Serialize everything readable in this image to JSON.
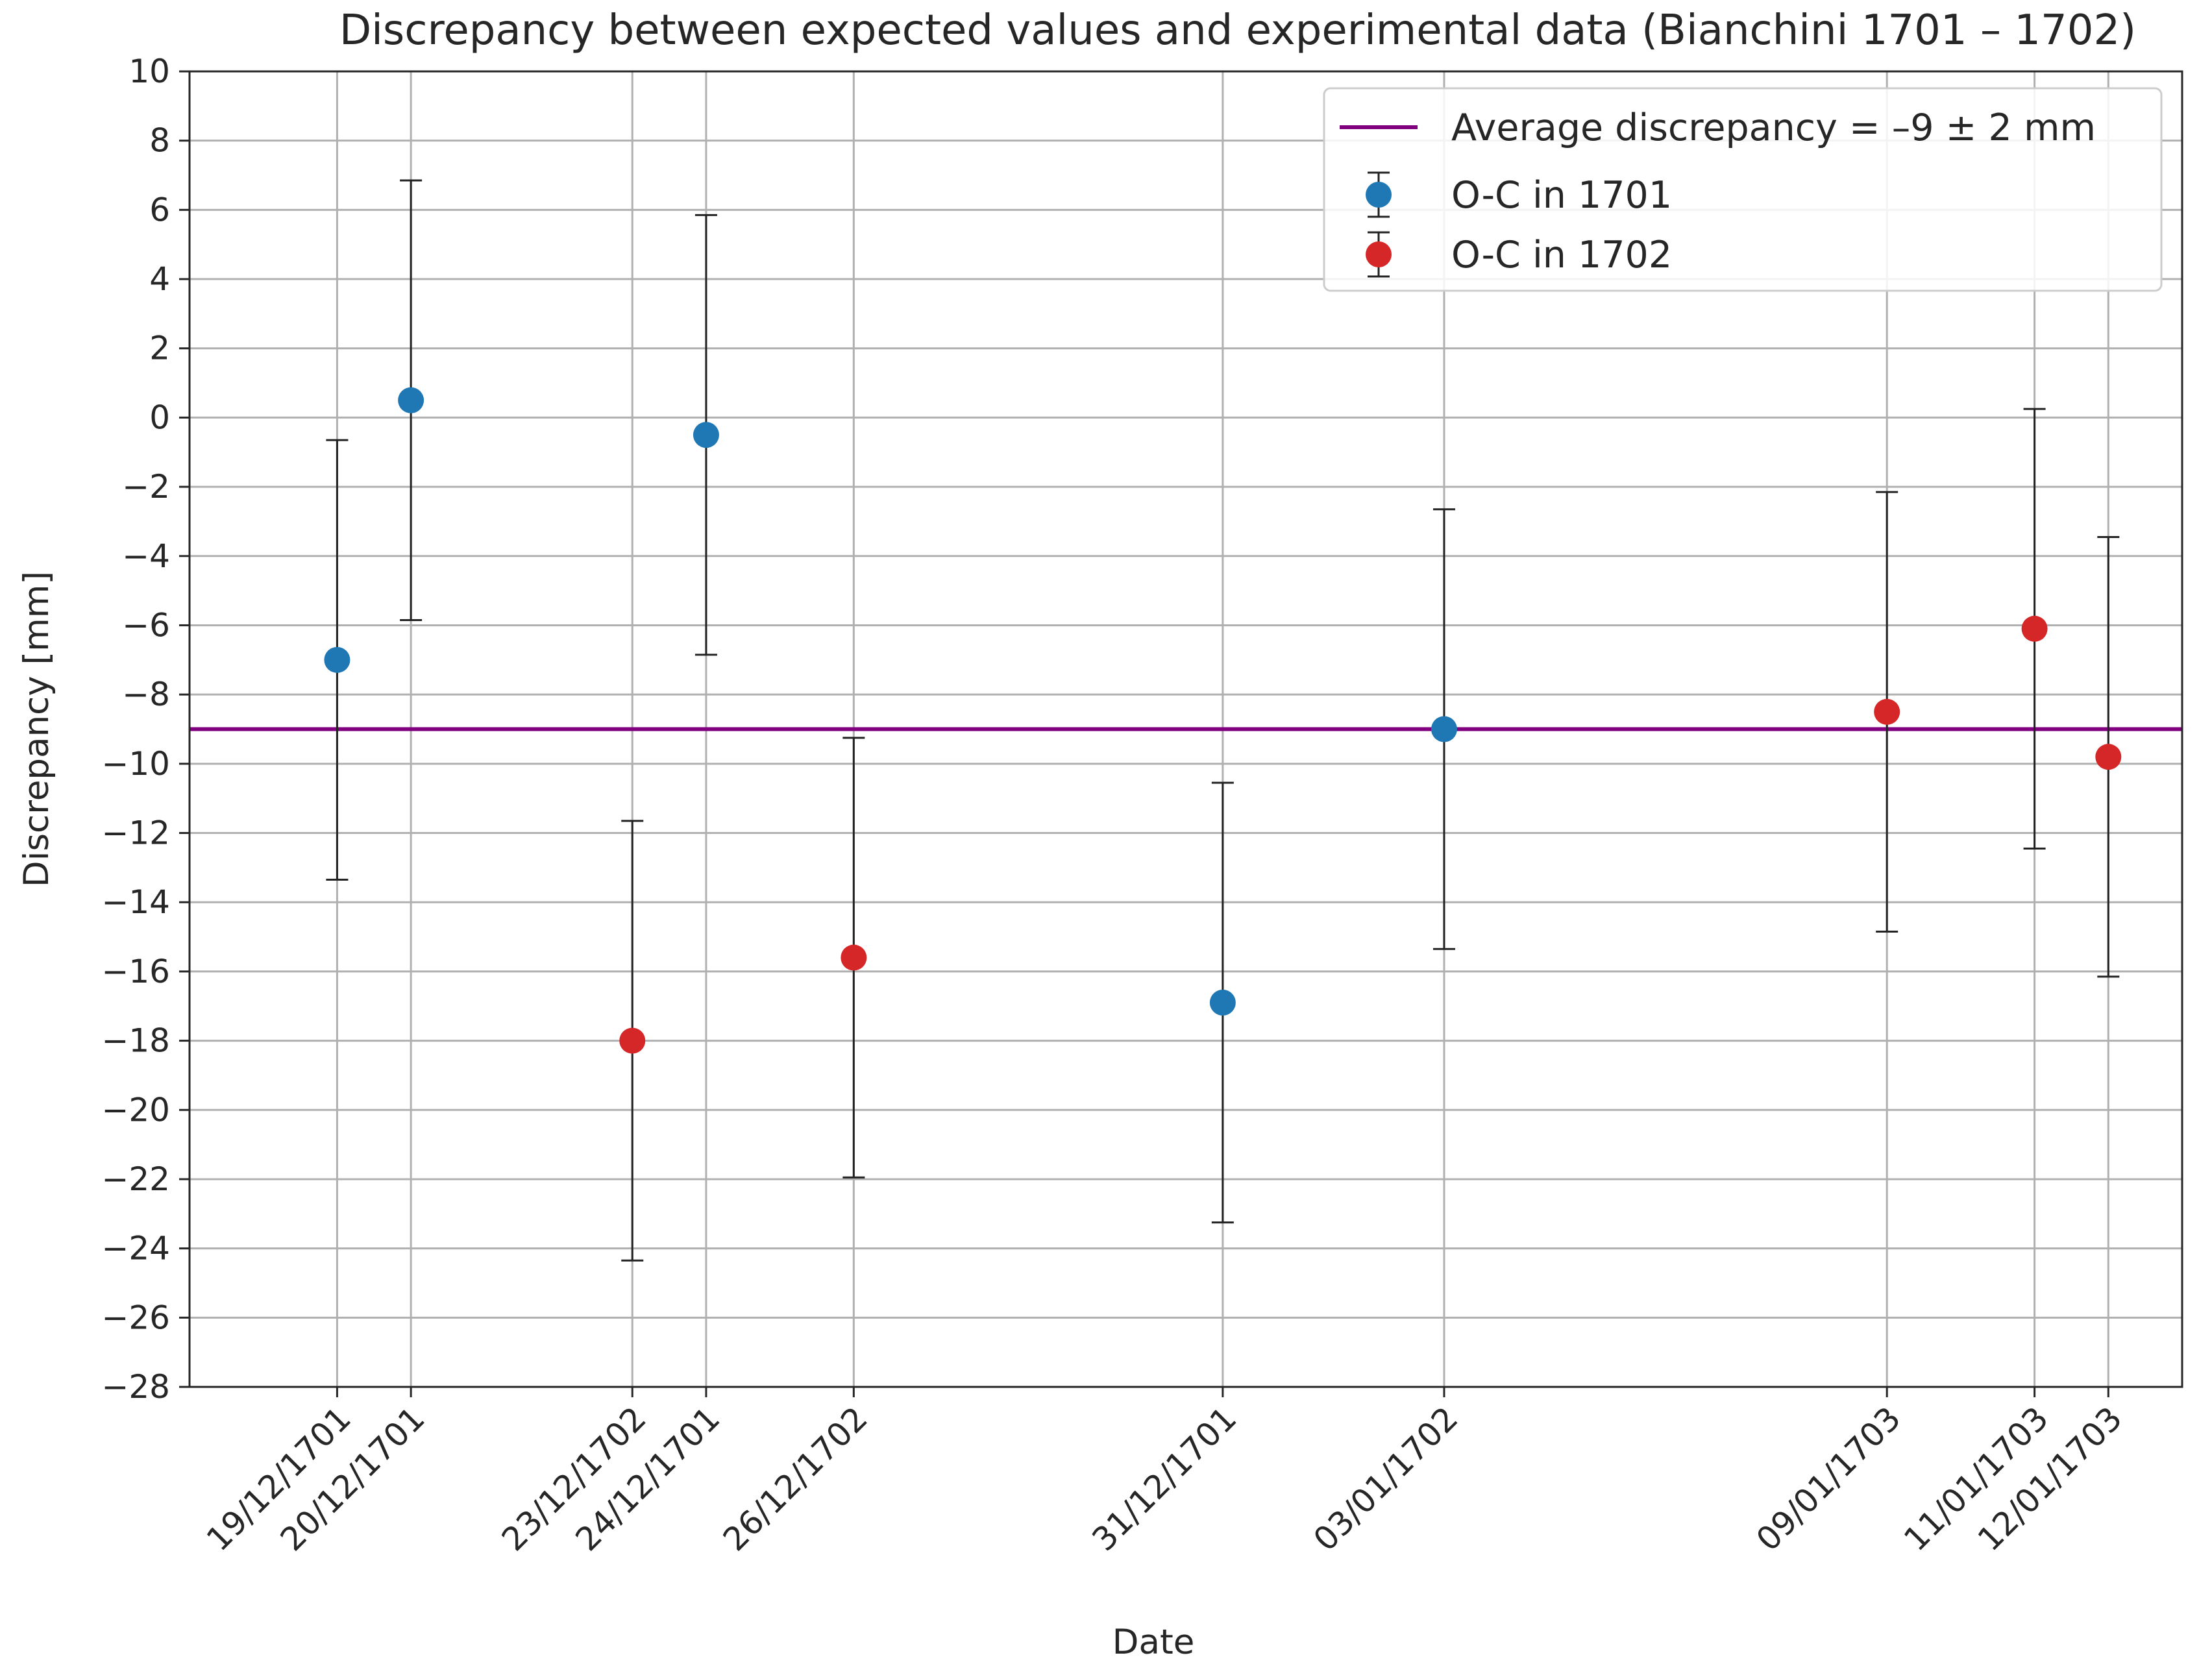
{
  "chart_data": {
    "type": "scatter",
    "title": "Discrepancy between expected values and experimental data (Bianchini 1701 – 1702)",
    "xlabel": "Date",
    "ylabel": "Discrepancy [mm]",
    "ylim": [
      -28,
      10
    ],
    "yticks": [
      10,
      8,
      6,
      4,
      2,
      0,
      -2,
      -4,
      -6,
      -8,
      -10,
      -12,
      -14,
      -16,
      -18,
      -20,
      -22,
      -24,
      -26,
      -28
    ],
    "ytick_labels": [
      "10",
      "8",
      "6",
      "4",
      "2",
      "0",
      "−2",
      "−4",
      "−6",
      "−8",
      "−10",
      "−12",
      "−14",
      "−16",
      "−18",
      "−20",
      "−22",
      "−24",
      "−26",
      "−28"
    ],
    "xlim": [
      -2,
      25
    ],
    "xticks": [
      {
        "day": 0,
        "label": "19/12/1701"
      },
      {
        "day": 1,
        "label": "20/12/1701"
      },
      {
        "day": 4,
        "label": "23/12/1702"
      },
      {
        "day": 5,
        "label": "24/12/1701"
      },
      {
        "day": 7,
        "label": "26/12/1702"
      },
      {
        "day": 12,
        "label": "31/12/1701"
      },
      {
        "day": 15,
        "label": "03/01/1702"
      },
      {
        "day": 21,
        "label": "09/01/1703"
      },
      {
        "day": 23,
        "label": "11/01/1703"
      },
      {
        "day": 24,
        "label": "12/01/1703"
      }
    ],
    "grid": true,
    "average_line": {
      "label": "Average discrepancy = –9 ± 2 mm",
      "value": -9,
      "color": "#800080"
    },
    "series": [
      {
        "name": "O-C in 1701",
        "color": "#1f77b4",
        "points": [
          {
            "x": 0,
            "y": -7.0,
            "yerr": 6.35
          },
          {
            "x": 1,
            "y": 0.5,
            "yerr": 6.35
          },
          {
            "x": 5,
            "y": -0.5,
            "yerr": 6.35
          },
          {
            "x": 12,
            "y": -16.9,
            "yerr": 6.35
          },
          {
            "x": 15,
            "y": -9.0,
            "yerr": 6.35
          }
        ]
      },
      {
        "name": "O-C in 1702",
        "color": "#d62728",
        "points": [
          {
            "x": 4,
            "y": -18.0,
            "yerr": 6.35
          },
          {
            "x": 7,
            "y": -15.6,
            "yerr": 6.35
          },
          {
            "x": 21,
            "y": -8.5,
            "yerr": 6.35
          },
          {
            "x": 23,
            "y": -6.1,
            "yerr": 6.35
          },
          {
            "x": 24,
            "y": -9.8,
            "yerr": 6.35
          }
        ]
      }
    ],
    "legend_location": "upper-right"
  }
}
